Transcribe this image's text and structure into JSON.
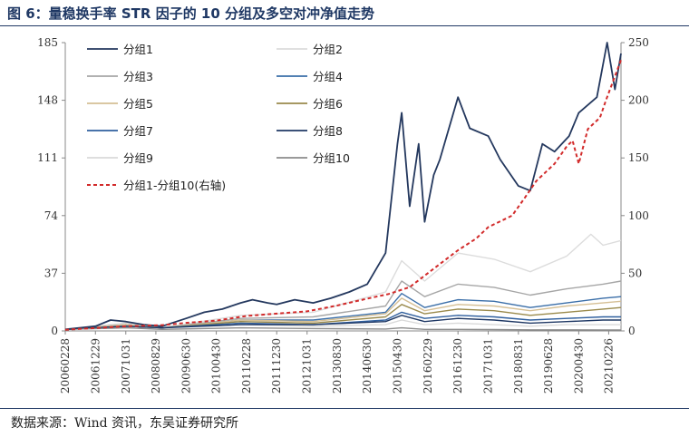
{
  "figure": {
    "title": "图 6：量稳换手率 STR 因子的 10 分组及多空对冲净值走势",
    "source": "数据来源：Wind 资讯，东吴证券研究所"
  },
  "chart_data": {
    "type": "line",
    "x_ticks": [
      "20060228",
      "20061229",
      "20071031",
      "20080829",
      "20090630",
      "20100430",
      "20110228",
      "20111230",
      "20121031",
      "20130830",
      "20140630",
      "20150430",
      "20160229",
      "20161230",
      "20171031",
      "20180831",
      "20190628",
      "20200430",
      "20210226"
    ],
    "x_start": "2006-02-28",
    "x_end": "2021-06-30",
    "y_left": {
      "ticks": [
        0,
        37,
        74,
        111,
        148,
        185
      ],
      "range": [
        0,
        185
      ]
    },
    "y_right": {
      "ticks": [
        0,
        50,
        100,
        150,
        200,
        250
      ],
      "range": [
        0,
        250
      ]
    },
    "grid": false,
    "legend_position": "top-left",
    "series": [
      {
        "name": "分组1",
        "axis": "left",
        "color": "#24385e",
        "dash": false,
        "points": [
          [
            "2006-02-28",
            1
          ],
          [
            "2006-12-29",
            3
          ],
          [
            "2007-05-31",
            7
          ],
          [
            "2007-10-31",
            6
          ],
          [
            "2008-04-30",
            4
          ],
          [
            "2008-10-31",
            3
          ],
          [
            "2009-06-30",
            8
          ],
          [
            "2009-12-31",
            12
          ],
          [
            "2010-06-30",
            14
          ],
          [
            "2010-12-31",
            18
          ],
          [
            "2011-04-30",
            20
          ],
          [
            "2011-09-30",
            18
          ],
          [
            "2011-12-30",
            17
          ],
          [
            "2012-06-29",
            20
          ],
          [
            "2012-12-31",
            18
          ],
          [
            "2013-06-28",
            21
          ],
          [
            "2013-12-31",
            25
          ],
          [
            "2014-06-30",
            30
          ],
          [
            "2014-12-31",
            50
          ],
          [
            "2015-04-30",
            120
          ],
          [
            "2015-06-12",
            140
          ],
          [
            "2015-08-31",
            80
          ],
          [
            "2015-11-30",
            120
          ],
          [
            "2016-01-29",
            70
          ],
          [
            "2016-04-29",
            100
          ],
          [
            "2016-06-30",
            110
          ],
          [
            "2016-12-30",
            150
          ],
          [
            "2017-04-28",
            130
          ],
          [
            "2017-10-31",
            125
          ],
          [
            "2018-02-28",
            110
          ],
          [
            "2018-08-31",
            93
          ],
          [
            "2018-12-28",
            90
          ],
          [
            "2019-04-30",
            120
          ],
          [
            "2019-08-30",
            115
          ],
          [
            "2020-01-23",
            125
          ],
          [
            "2020-04-30",
            140
          ],
          [
            "2020-10-30",
            150
          ],
          [
            "2021-02-10",
            185
          ],
          [
            "2021-04-30",
            155
          ],
          [
            "2021-06-30",
            178
          ]
        ]
      },
      {
        "name": "分组2",
        "axis": "left",
        "color": "#dcdcdc",
        "dash": false,
        "points": [
          [
            "2006-02-28",
            1
          ],
          [
            "2007-10-31",
            5
          ],
          [
            "2008-10-31",
            2
          ],
          [
            "2010-12-31",
            10
          ],
          [
            "2012-12-31",
            12
          ],
          [
            "2014-12-31",
            25
          ],
          [
            "2015-06-12",
            45
          ],
          [
            "2016-01-29",
            32
          ],
          [
            "2016-12-30",
            50
          ],
          [
            "2017-12-29",
            46
          ],
          [
            "2018-12-28",
            38
          ],
          [
            "2019-12-31",
            48
          ],
          [
            "2020-08-31",
            62
          ],
          [
            "2020-12-31",
            55
          ],
          [
            "2021-06-30",
            58
          ]
        ]
      },
      {
        "name": "分组3",
        "axis": "left",
        "color": "#a6a6a6",
        "dash": false,
        "points": [
          [
            "2006-02-28",
            1
          ],
          [
            "2007-10-31",
            4
          ],
          [
            "2008-10-31",
            2
          ],
          [
            "2010-12-31",
            8
          ],
          [
            "2012-12-31",
            9
          ],
          [
            "2014-12-31",
            16
          ],
          [
            "2015-06-12",
            32
          ],
          [
            "2016-01-29",
            22
          ],
          [
            "2016-12-30",
            30
          ],
          [
            "2017-12-29",
            28
          ],
          [
            "2018-12-28",
            23
          ],
          [
            "2019-12-31",
            27
          ],
          [
            "2020-12-31",
            30
          ],
          [
            "2021-06-30",
            32
          ]
        ]
      },
      {
        "name": "分组4",
        "axis": "left",
        "color": "#3a6ea8",
        "dash": false,
        "points": [
          [
            "2006-02-28",
            1
          ],
          [
            "2007-10-31",
            4
          ],
          [
            "2008-10-31",
            2
          ],
          [
            "2010-12-31",
            7
          ],
          [
            "2012-12-31",
            7
          ],
          [
            "2014-12-31",
            12
          ],
          [
            "2015-06-12",
            24
          ],
          [
            "2016-01-29",
            15
          ],
          [
            "2016-12-30",
            20
          ],
          [
            "2017-12-29",
            19
          ],
          [
            "2018-12-28",
            15
          ],
          [
            "2019-12-31",
            18
          ],
          [
            "2020-12-31",
            21
          ],
          [
            "2021-06-30",
            22
          ]
        ]
      },
      {
        "name": "分组5",
        "axis": "left",
        "color": "#d5bf95",
        "dash": false,
        "points": [
          [
            "2006-02-28",
            1
          ],
          [
            "2007-10-31",
            4
          ],
          [
            "2008-10-31",
            2
          ],
          [
            "2010-12-31",
            7
          ],
          [
            "2012-12-31",
            6
          ],
          [
            "2014-12-31",
            11
          ],
          [
            "2015-06-12",
            21
          ],
          [
            "2016-01-29",
            13
          ],
          [
            "2016-12-30",
            17
          ],
          [
            "2017-12-29",
            16
          ],
          [
            "2018-12-28",
            13
          ],
          [
            "2019-12-31",
            16
          ],
          [
            "2020-12-31",
            18
          ],
          [
            "2021-06-30",
            19
          ]
        ]
      },
      {
        "name": "分组6",
        "axis": "left",
        "color": "#9a8a4c",
        "dash": false,
        "points": [
          [
            "2006-02-28",
            1
          ],
          [
            "2007-10-31",
            3
          ],
          [
            "2008-10-31",
            2
          ],
          [
            "2010-12-31",
            6
          ],
          [
            "2012-12-31",
            5
          ],
          [
            "2014-12-31",
            9
          ],
          [
            "2015-06-12",
            17
          ],
          [
            "2016-01-29",
            11
          ],
          [
            "2016-12-30",
            14
          ],
          [
            "2017-12-29",
            13
          ],
          [
            "2018-12-28",
            10
          ],
          [
            "2019-12-31",
            12
          ],
          [
            "2020-12-31",
            14
          ],
          [
            "2021-06-30",
            15
          ]
        ]
      },
      {
        "name": "分组7",
        "axis": "left",
        "color": "#2f5f9e",
        "dash": false,
        "points": [
          [
            "2006-02-28",
            1
          ],
          [
            "2007-10-31",
            3
          ],
          [
            "2008-10-31",
            2
          ],
          [
            "2010-12-31",
            5
          ],
          [
            "2012-12-31",
            4
          ],
          [
            "2014-12-31",
            7
          ],
          [
            "2015-06-12",
            12
          ],
          [
            "2016-01-29",
            8
          ],
          [
            "2016-12-30",
            10
          ],
          [
            "2017-12-29",
            9
          ],
          [
            "2018-12-28",
            7
          ],
          [
            "2019-12-31",
            8
          ],
          [
            "2020-12-31",
            9
          ],
          [
            "2021-06-30",
            9
          ]
        ]
      },
      {
        "name": "分组8",
        "axis": "left",
        "color": "#1f3864",
        "dash": false,
        "points": [
          [
            "2006-02-28",
            1
          ],
          [
            "2007-10-31",
            3
          ],
          [
            "2008-10-31",
            2
          ],
          [
            "2010-12-31",
            4
          ],
          [
            "2012-12-31",
            4
          ],
          [
            "2014-12-31",
            6
          ],
          [
            "2015-06-12",
            10
          ],
          [
            "2016-01-29",
            6
          ],
          [
            "2016-12-30",
            8
          ],
          [
            "2017-12-29",
            7
          ],
          [
            "2018-12-28",
            5
          ],
          [
            "2019-12-31",
            6
          ],
          [
            "2020-12-31",
            7
          ],
          [
            "2021-06-30",
            7
          ]
        ]
      },
      {
        "name": "分组9",
        "axis": "left",
        "color": "#d9d9d9",
        "dash": false,
        "points": [
          [
            "2006-02-28",
            1
          ],
          [
            "2007-10-31",
            3
          ],
          [
            "2008-10-31",
            2
          ],
          [
            "2010-12-31",
            4
          ],
          [
            "2012-12-31",
            3
          ],
          [
            "2014-12-31",
            4
          ],
          [
            "2015-06-12",
            7
          ],
          [
            "2016-01-29",
            4
          ],
          [
            "2016-12-30",
            5
          ],
          [
            "2017-12-29",
            4
          ],
          [
            "2018-12-28",
            3
          ],
          [
            "2019-12-31",
            4
          ],
          [
            "2020-12-31",
            4
          ],
          [
            "2021-06-30",
            4
          ]
        ]
      },
      {
        "name": "分组10",
        "axis": "left",
        "color": "#8c8c8c",
        "dash": false,
        "points": [
          [
            "2006-02-28",
            1
          ],
          [
            "2007-10-31",
            2
          ],
          [
            "2008-10-31",
            1
          ],
          [
            "2010-12-31",
            2
          ],
          [
            "2012-12-31",
            1.5
          ],
          [
            "2014-12-31",
            1.2
          ],
          [
            "2015-06-12",
            2
          ],
          [
            "2016-01-29",
            1
          ],
          [
            "2016-12-30",
            1
          ],
          [
            "2017-12-29",
            0.9
          ],
          [
            "2018-12-28",
            0.7
          ],
          [
            "2019-12-31",
            0.7
          ],
          [
            "2020-12-31",
            0.6
          ],
          [
            "2021-06-30",
            0.6
          ]
        ]
      },
      {
        "name": "分组1-分组10(右轴)",
        "axis": "right",
        "color": "#d22b2b",
        "dash": true,
        "points": [
          [
            "2006-02-28",
            1
          ],
          [
            "2007-10-31",
            4
          ],
          [
            "2008-10-31",
            5
          ],
          [
            "2009-06-30",
            7
          ],
          [
            "2010-04-30",
            9
          ],
          [
            "2011-02-28",
            13
          ],
          [
            "2011-12-30",
            15
          ],
          [
            "2012-10-31",
            17
          ],
          [
            "2013-08-30",
            22
          ],
          [
            "2014-06-30",
            28
          ],
          [
            "2015-01-30",
            32
          ],
          [
            "2015-08-31",
            38
          ],
          [
            "2016-02-29",
            50
          ],
          [
            "2016-12-30",
            70
          ],
          [
            "2017-06-30",
            80
          ],
          [
            "2017-10-31",
            90
          ],
          [
            "2018-06-29",
            100
          ],
          [
            "2018-10-31",
            115
          ],
          [
            "2019-02-28",
            130
          ],
          [
            "2019-08-30",
            145
          ],
          [
            "2019-12-31",
            160
          ],
          [
            "2020-02-28",
            165
          ],
          [
            "2020-04-30",
            145
          ],
          [
            "2020-07-31",
            175
          ],
          [
            "2020-11-30",
            185
          ],
          [
            "2021-01-29",
            200
          ],
          [
            "2021-06-30",
            235
          ]
        ]
      }
    ]
  }
}
